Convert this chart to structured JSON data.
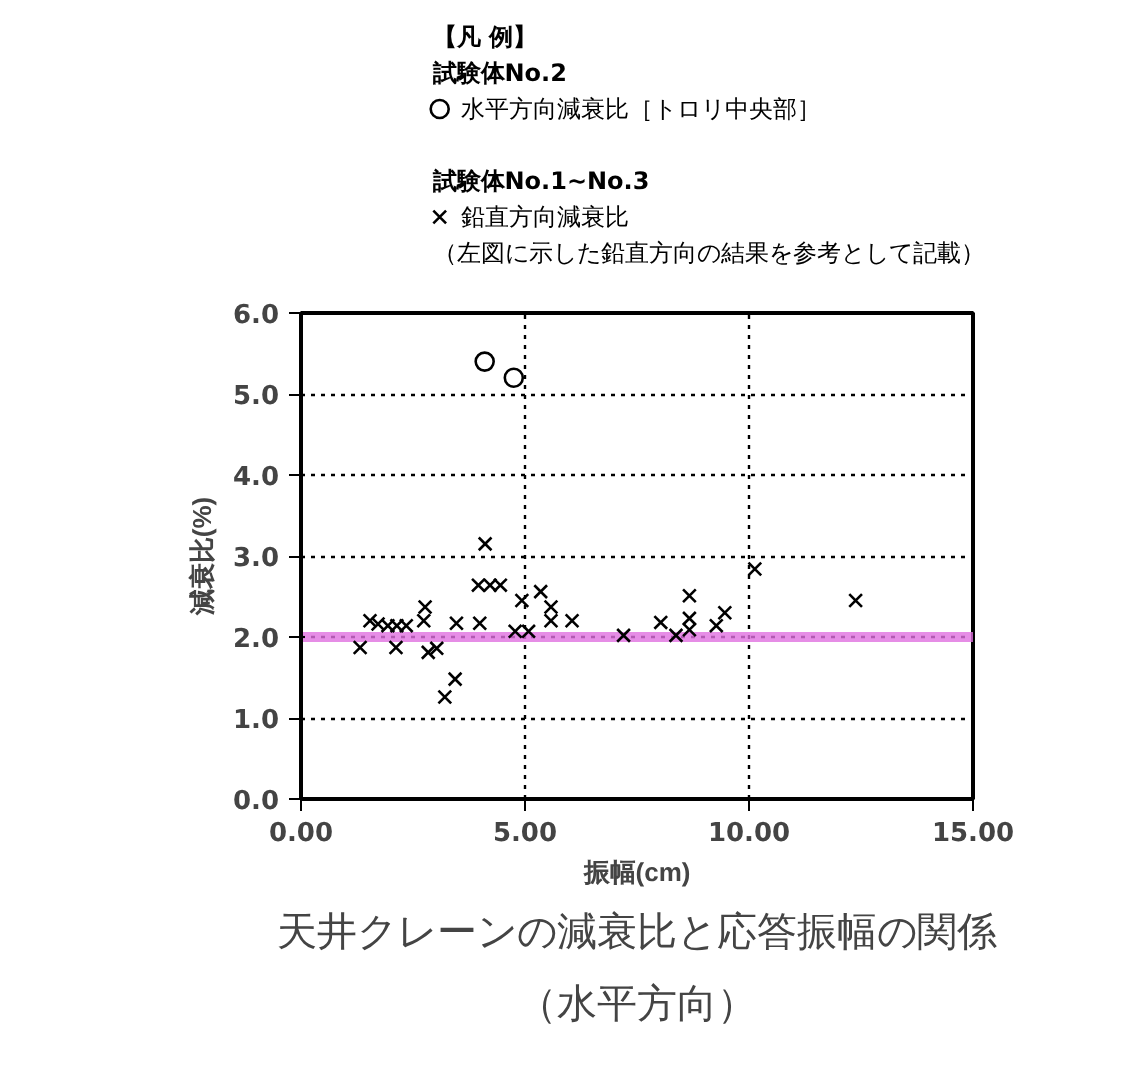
{
  "chart_data": {
    "type": "scatter",
    "title": "天井クレーンの減衰比と応答振幅の関係",
    "subtitle": "（水平方向）",
    "legend_title": "【凡 例】",
    "xlabel": "振幅(cm)",
    "ylabel": "減衰比(%)",
    "xlim": [
      0,
      15
    ],
    "ylim": [
      0,
      6
    ],
    "xticks": [
      {
        "value": 0,
        "label": "0.00"
      },
      {
        "value": 5,
        "label": "5.00"
      },
      {
        "value": 10,
        "label": "10.00"
      },
      {
        "value": 15,
        "label": "15.00"
      }
    ],
    "yticks": [
      {
        "value": 0,
        "label": "0.0"
      },
      {
        "value": 1,
        "label": "1.0"
      },
      {
        "value": 2,
        "label": "2.0"
      },
      {
        "value": 3,
        "label": "3.0"
      },
      {
        "value": 4,
        "label": "4.0"
      },
      {
        "value": 5,
        "label": "5.0"
      },
      {
        "value": 6,
        "label": "6.0"
      }
    ],
    "grid": true,
    "legend": "top",
    "annotations": [
      "試験体No.2",
      "試験体No.1~No.3",
      "（左図に示した鉛直方向の結果を参考として記載）"
    ],
    "ref_lines": [
      {
        "axis": "y",
        "value": 2.0,
        "label": null,
        "color": "#e070e0"
      }
    ],
    "series": [
      {
        "name": "水平方向減衰比［トロリ中央部］",
        "color": "#000000",
        "marker": "circle",
        "x": [
          4.1,
          4.75
        ],
        "values": [
          5.4,
          5.2
        ]
      },
      {
        "name": "鉛直方向減衰比",
        "color": "#000000",
        "marker": "cross",
        "x": [
          1.32,
          1.54,
          1.72,
          1.94,
          2.12,
          2.14,
          2.35,
          2.77,
          2.74,
          2.84,
          3.03,
          3.21,
          3.44,
          3.47,
          3.99,
          4.11,
          3.96,
          4.22,
          4.45,
          4.93,
          4.78,
          5.08,
          5.35,
          5.58,
          5.58,
          6.05,
          7.2,
          8.03,
          8.37,
          8.67,
          8.67,
          8.67,
          9.27,
          9.46,
          10.13,
          12.38
        ],
        "values": [
          1.87,
          2.2,
          2.16,
          2.14,
          1.87,
          2.14,
          2.14,
          2.37,
          2.2,
          1.81,
          1.86,
          1.26,
          1.48,
          2.17,
          2.17,
          3.15,
          2.64,
          2.64,
          2.64,
          2.45,
          2.07,
          2.07,
          2.56,
          2.37,
          2.2,
          2.2,
          2.02,
          2.18,
          2.02,
          2.51,
          2.23,
          2.09,
          2.14,
          2.3,
          2.84,
          2.45
        ]
      }
    ]
  }
}
